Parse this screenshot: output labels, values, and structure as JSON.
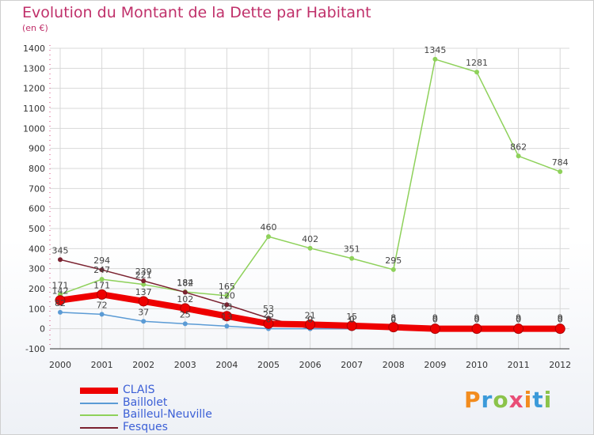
{
  "header": {
    "title": "Evolution du Montant de la Dette par Habitant",
    "subtitle": "(en €)"
  },
  "colors": {
    "title": "#c0306a",
    "axis_text": "#333333",
    "grid": "#d8d8d8",
    "legend_text": "#3b5fd6"
  },
  "logo": {
    "text": "Proxiti",
    "letters": [
      {
        "ch": "P",
        "color": "#f28c1e"
      },
      {
        "ch": "r",
        "color": "#3b9ad9"
      },
      {
        "ch": "o",
        "color": "#8bc34a"
      },
      {
        "ch": "x",
        "color": "#e94e77"
      },
      {
        "ch": "i",
        "color": "#f28c1e"
      },
      {
        "ch": "t",
        "color": "#3b9ad9"
      },
      {
        "ch": "i",
        "color": "#8bc34a"
      }
    ]
  },
  "chart_data": {
    "type": "line",
    "title": "Evolution du Montant de la Dette par Habitant",
    "subtitle": "(en €)",
    "x": [
      "2000",
      "2001",
      "2002",
      "2003",
      "2004",
      "2005",
      "2006",
      "2007",
      "2008",
      "2009",
      "2010",
      "2011",
      "2012"
    ],
    "ylim": [
      -100,
      1400
    ],
    "yticks": [
      -100,
      0,
      100,
      200,
      300,
      400,
      500,
      600,
      700,
      800,
      900,
      1000,
      1100,
      1200,
      1300,
      1400
    ],
    "grid": true,
    "legend_position": "bottom-left",
    "series": [
      {
        "name": "CLAIS",
        "color": "#ee0000",
        "values": [
          142,
          171,
          137,
          102,
          63,
          25,
          21,
          15,
          8,
          0,
          0,
          0,
          0
        ],
        "labels": [
          "142",
          "171",
          "137",
          "102",
          "63",
          "25",
          "21",
          "15",
          "8",
          "0",
          "0",
          "0",
          "0"
        ]
      },
      {
        "name": "Baillolet",
        "color": "#5b9bd5",
        "values": [
          82,
          72,
          37,
          25,
          13,
          0,
          0,
          0,
          0,
          0,
          0,
          0,
          0
        ],
        "labels": [
          "82",
          "72",
          "37",
          "25",
          "13",
          "0",
          "0",
          "0",
          "0",
          "0",
          "0",
          "0",
          "0"
        ]
      },
      {
        "name": "Bailleul-Neuville",
        "color": "#8ed15a",
        "values": [
          171,
          247,
          221,
          184,
          165,
          460,
          402,
          351,
          295,
          1345,
          1281,
          862,
          784
        ],
        "labels": [
          "171",
          "247",
          "221",
          "184",
          "165",
          "460",
          "402",
          "351",
          "295",
          "1345",
          "1281",
          "862",
          "784"
        ]
      },
      {
        "name": "Fesques",
        "color": "#7b2230",
        "values": [
          345,
          294,
          239,
          182,
          120,
          53,
          0,
          0,
          0,
          9,
          9,
          9,
          9
        ],
        "labels": [
          "345",
          "294",
          "239",
          "182",
          "120",
          "53",
          "0",
          "0",
          "0",
          "9",
          "9",
          "9",
          "9"
        ]
      }
    ]
  }
}
